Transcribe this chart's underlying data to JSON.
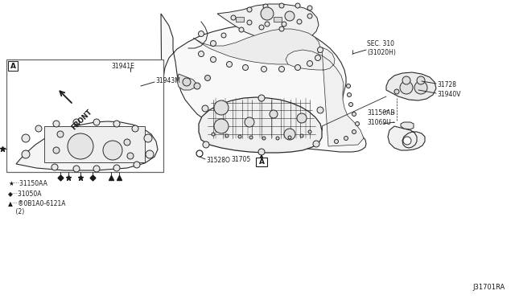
{
  "bg_color": "#ffffff",
  "line_color": "#2a2a2a",
  "text_color": "#1a1a1a",
  "fill_white": "#ffffff",
  "fill_light": "#f4f4f4",
  "labels": {
    "sec310": "SEC. 310\n(31020H)",
    "front": "FRONT",
    "part_31943M": "31943M",
    "part_31941E": "31941E",
    "part_31528O": "31528O",
    "part_31705": "31705",
    "part_31069U": "31069U",
    "part_31150AB": "31150AB",
    "part_31940V": "31940V",
    "part_31728": "31728",
    "legend_star": "★···31150AA",
    "legend_diamond": "◆···31050A",
    "legend_triangle": "▲···®0B1A0-6121A",
    "legend_triangle2": "    (2)",
    "box_a": "A",
    "ref_code": "J31701RA"
  },
  "figsize": [
    6.4,
    3.72
  ],
  "dpi": 100
}
